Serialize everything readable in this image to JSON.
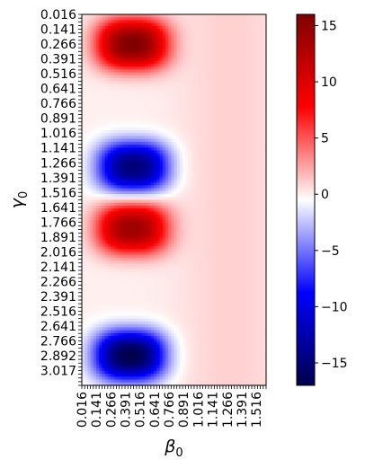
{
  "chart_data": {
    "type": "heatmap",
    "colormap": "seismic",
    "xlabel": "β",
    "xlabel_subscript": "0",
    "ylabel": "γ",
    "ylabel_subscript": "0",
    "x_tick_labels": [
      "0.016",
      "0.141",
      "0.266",
      "0.391",
      "0.516",
      "0.641",
      "0.766",
      "0.891",
      "1.016",
      "1.141",
      "1.266",
      "1.391",
      "1.516"
    ],
    "y_tick_labels": [
      "0.016",
      "0.141",
      "0.266",
      "0.391",
      "0.516",
      "0.641",
      "0.766",
      "0.891",
      "1.016",
      "1.141",
      "1.266",
      "1.391",
      "1.516",
      "1.641",
      "1.766",
      "1.891",
      "2.016",
      "2.141",
      "2.266",
      "2.391",
      "2.516",
      "2.641",
      "2.766",
      "2.892",
      "3.017"
    ],
    "xlim": [
      0.016,
      1.6
    ],
    "ylim": [
      0.016,
      3.14
    ],
    "vmin": -17,
    "vmax": 16,
    "colorbar_ticks": [
      15,
      10,
      5,
      0,
      -5,
      -10,
      -15
    ],
    "colorbar_tick_labels": [
      "15",
      "10",
      "5",
      "0",
      "−5",
      "−10",
      "−15"
    ],
    "background_value": 1,
    "lobes": [
      {
        "gamma_center": 0.266,
        "beta_center": 0.45,
        "peak": 16
      },
      {
        "gamma_center": 1.3,
        "beta_center": 0.46,
        "peak": -15
      },
      {
        "gamma_center": 1.82,
        "beta_center": 0.45,
        "peak": 14
      },
      {
        "gamma_center": 2.89,
        "beta_center": 0.43,
        "peak": -17
      }
    ]
  }
}
